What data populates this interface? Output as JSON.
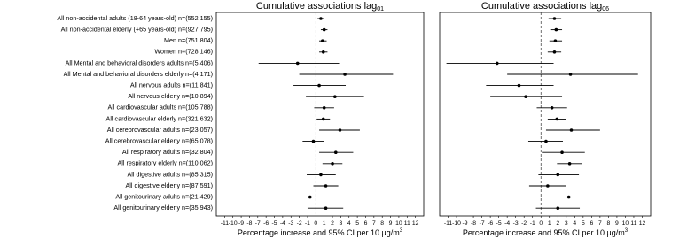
{
  "chart_data": [
    {
      "type": "forest",
      "title": "Cumulative associations lag",
      "title_subscript": "01",
      "xlabel": "Percentage increase and 95% CI per 10 μg/m",
      "xlabel_superscript": "3",
      "categories": [
        "All non-accidental adults (18-64 years-old) n=(552,155)",
        "All non-accidental elderly (+65 years-old) n=(927,795)",
        "Men n=(751,804)",
        "Women n=(728,146)",
        "All Mental and behavioral disorders adults n=(5,406)",
        "All Mental and behavioral disorders elderly n=(4,171)",
        "All nervous adults n=(11,841)",
        "All nervous elderly n=(10,894)",
        "All cardiovascular adults n=(105,788)",
        "All cardiovascular elderly n=(321,632)",
        "All cerebrovascular adults n=(23,057)",
        "All cerebrovascular elderly n=(65,078)",
        "All respiratory adults n=(32,804)",
        "All respiratory elderly n=(110,062)",
        "All digestive adults n=(85,315)",
        "All digestive elderly n=(87,591)",
        "All genitourinary adults n=(21,429)",
        "All genitourinary elderly n=(35,943)"
      ],
      "values": [
        0.6,
        1.0,
        0.8,
        0.9,
        -2.2,
        3.5,
        0.4,
        2.3,
        1.0,
        0.9,
        2.9,
        -0.3,
        2.4,
        2.0,
        0.6,
        1.2,
        -0.7,
        1.2
      ],
      "lower": [
        0.2,
        0.6,
        0.4,
        0.4,
        -6.9,
        -2.0,
        -2.7,
        -1.2,
        -0.2,
        0.1,
        0.4,
        -1.6,
        0.4,
        0.8,
        -1.1,
        -0.3,
        -3.4,
        -1.0
      ],
      "upper": [
        1.0,
        1.4,
        1.3,
        1.4,
        2.8,
        9.3,
        3.6,
        5.8,
        2.2,
        1.7,
        5.3,
        1.0,
        4.5,
        3.2,
        2.4,
        2.7,
        2.1,
        3.3
      ],
      "color": "#000000",
      "xlim": [
        -12,
        13
      ],
      "xticks": [
        -11,
        -10,
        -9,
        -8,
        -7,
        -6,
        -5,
        -4,
        -3,
        -2,
        -1,
        0,
        1,
        2,
        3,
        4,
        5,
        6,
        7,
        8,
        9,
        10,
        11,
        12
      ]
    },
    {
      "type": "forest",
      "title": "Cumulative associations lag",
      "title_subscript": "06",
      "xlabel": "Percentage increase and 95% CI per 10 μg/m",
      "xlabel_superscript": "3",
      "values": [
        1.6,
        1.8,
        1.7,
        1.6,
        -5.2,
        3.5,
        -2.6,
        -1.8,
        1.3,
        1.9,
        3.6,
        0.6,
        2.5,
        3.4,
        2.0,
        0.8,
        3.3,
        2.0
      ],
      "lower": [
        0.9,
        1.1,
        1.0,
        0.8,
        -11.2,
        -4.0,
        -6.5,
        -6.0,
        -0.5,
        0.8,
        0.6,
        -1.5,
        0.1,
        1.9,
        -0.3,
        -1.4,
        -0.2,
        -0.6
      ],
      "upper": [
        2.4,
        2.5,
        2.5,
        2.4,
        1.5,
        11.5,
        1.5,
        2.5,
        3.1,
        3.0,
        7.0,
        2.6,
        5.2,
        4.9,
        4.5,
        3.0,
        6.9,
        4.6
      ],
      "color": "#000000",
      "xlim": [
        -12,
        13
      ],
      "xticks": [
        -11,
        -10,
        -9,
        -8,
        -7,
        -6,
        -5,
        -4,
        -3,
        -2,
        -1,
        0,
        1,
        2,
        3,
        4,
        5,
        6,
        7,
        8,
        9,
        10,
        11,
        12
      ]
    }
  ]
}
